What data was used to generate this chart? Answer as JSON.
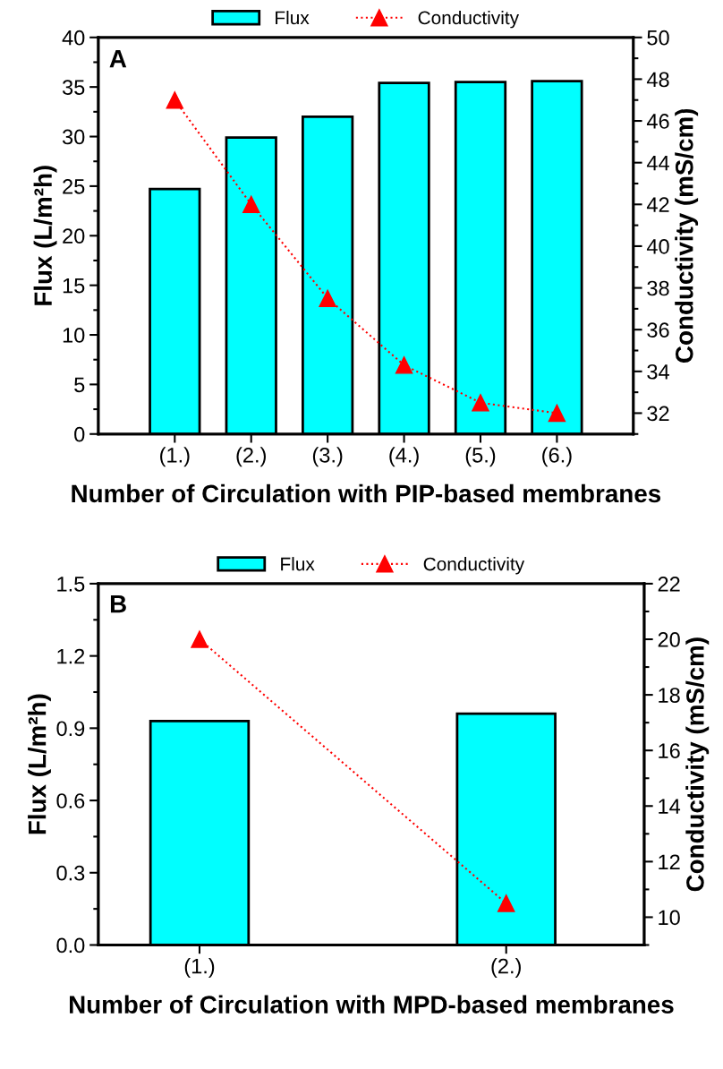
{
  "chart_data": [
    {
      "type": "bar",
      "categories": [
        "(1.)",
        "(2.)",
        "(3.)",
        "(4.)",
        "(5.)",
        "(6.)"
      ],
      "xlabel": "Number of Circulation with PIP-based membranes",
      "ylabel": "Flux (L/m²h)",
      "y2label": "Conductivity (mS/cm)",
      "annotations": [
        "A"
      ],
      "series": [
        {
          "name": "Flux",
          "color": "#00ffff",
          "values": [
            24.7,
            29.9,
            32.0,
            35.4,
            35.5,
            35.6
          ]
        },
        {
          "name": "Conductivity",
          "type": "line",
          "axis": "y2",
          "color": "#ff0000",
          "marker": "triangle",
          "line_style": "dotted",
          "values": [
            47.0,
            42.0,
            37.5,
            34.3,
            32.5,
            32.0
          ]
        }
      ],
      "ylim": [
        0,
        40
      ],
      "yticks": [
        0,
        5,
        10,
        15,
        20,
        25,
        30,
        35,
        40
      ],
      "y2lim": [
        31,
        50
      ],
      "y2ticks": [
        32,
        34,
        36,
        38,
        40,
        42,
        44,
        46,
        48,
        50
      ],
      "legend": "top",
      "grid": false
    },
    {
      "type": "bar",
      "categories": [
        "(1.)",
        "(2.)"
      ],
      "xlabel": "Number of Circulation with MPD-based membranes",
      "ylabel": "Flux (L/m²h)",
      "y2label": "Conductivity (mS/cm)",
      "annotations": [
        "B"
      ],
      "series": [
        {
          "name": "Flux",
          "color": "#00ffff",
          "values": [
            0.93,
            0.96
          ]
        },
        {
          "name": "Conductivity",
          "type": "line",
          "axis": "y2",
          "color": "#ff0000",
          "marker": "triangle",
          "line_style": "dotted",
          "values": [
            20.0,
            10.5
          ]
        }
      ],
      "ylim": [
        0,
        1.5
      ],
      "yticks": [
        {
          "value": 0,
          "label": "0.0"
        },
        0.3,
        0.6,
        0.9,
        1.2,
        1.5
      ],
      "y2lim": [
        9,
        22
      ],
      "y2ticks": [
        10,
        12,
        14,
        16,
        18,
        20,
        22
      ],
      "legend": "top",
      "grid": false
    }
  ]
}
